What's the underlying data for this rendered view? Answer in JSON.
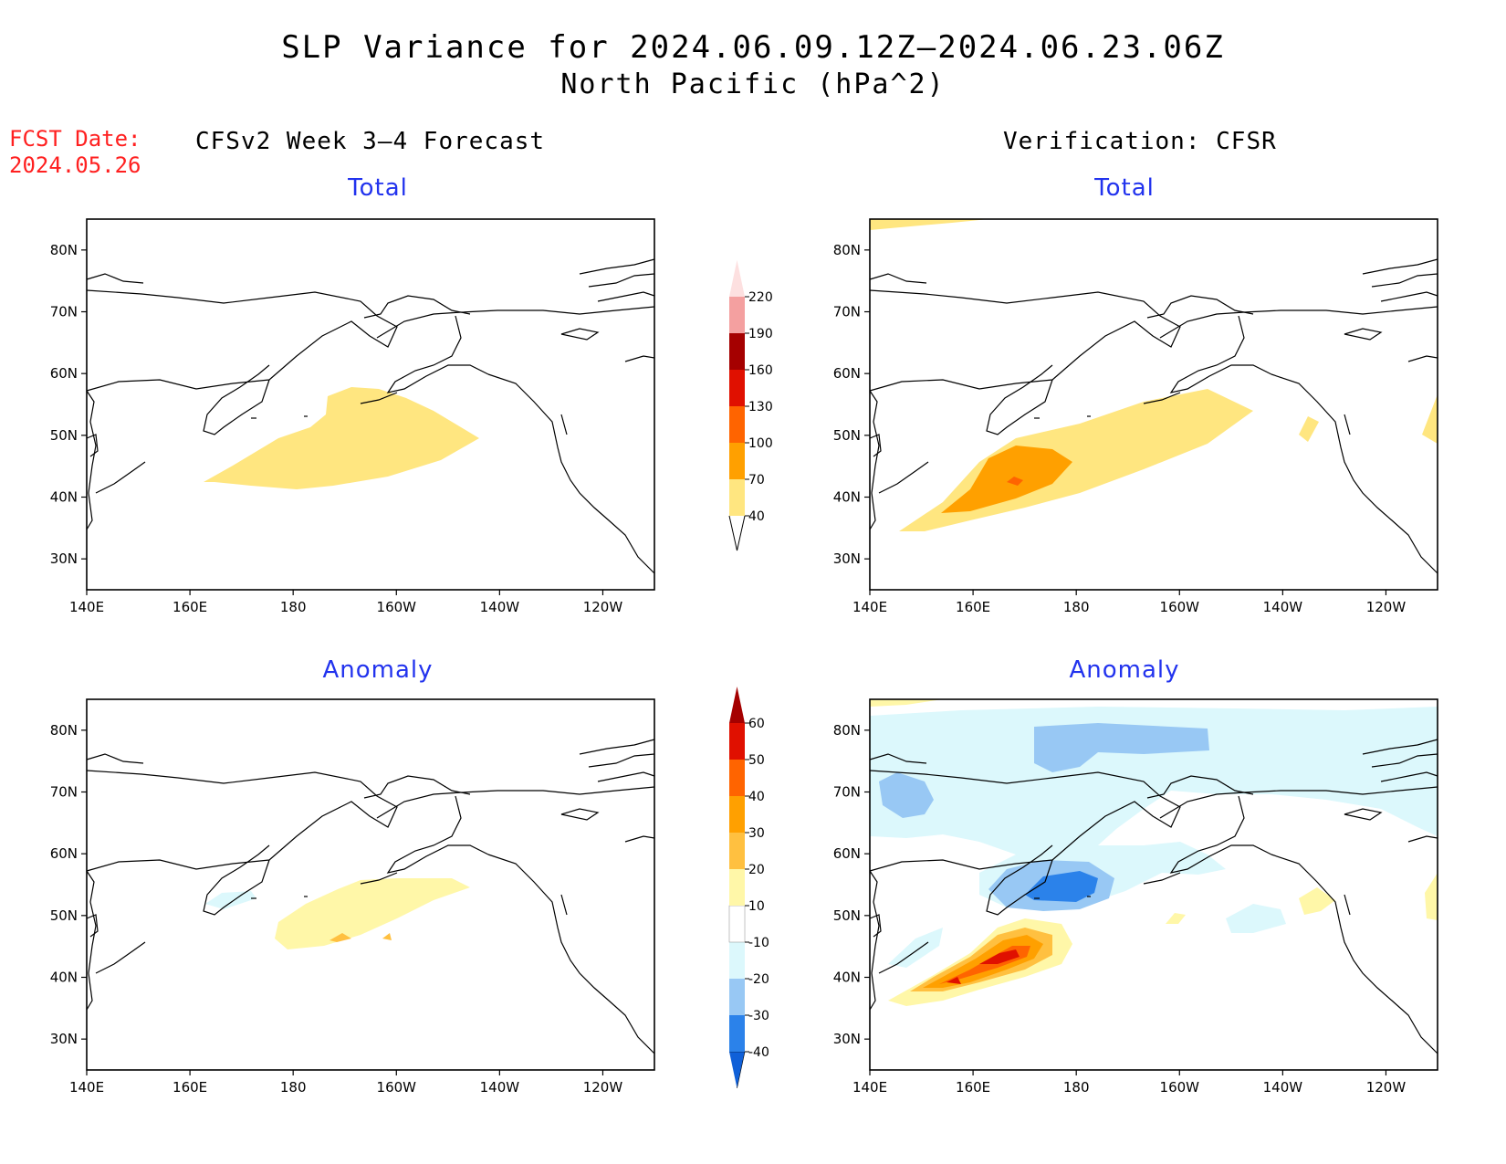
{
  "title": "SLP Variance for 2024.06.09.12Z–2024.06.23.06Z",
  "subtitle": "North Pacific (hPa^2)",
  "fcst_date": "FCST Date:\n2024.05.26",
  "left_header": "CFSv2 Week 3–4 Forecast",
  "right_header": "Verification: CFSR",
  "panels": {
    "fc_total": "Total",
    "ver_total": "Total",
    "fc_anom": "Anomaly",
    "ver_anom": "Anomaly"
  },
  "axes": {
    "lon_labels": [
      "140E",
      "160E",
      "180",
      "160W",
      "140W",
      "120W"
    ],
    "lon_values": [
      140,
      160,
      180,
      200,
      220,
      240
    ],
    "lat_labels": [
      "30N",
      "40N",
      "50N",
      "60N",
      "70N",
      "80N"
    ],
    "lat_values": [
      30,
      40,
      50,
      60,
      70,
      80
    ],
    "lon_range": [
      140,
      250
    ],
    "lat_range": [
      25,
      85
    ]
  },
  "colorbars": {
    "total": {
      "levels": [
        "40",
        "70",
        "100",
        "130",
        "160",
        "190",
        "220"
      ],
      "colors": [
        "#ffe680",
        "#ffa000",
        "#ff6400",
        "#e01000",
        "#a50000",
        "#f4a0a0",
        "#fde0e0"
      ]
    },
    "anomaly": {
      "levels": [
        "-40",
        "-30",
        "-20",
        "-10",
        "10",
        "20",
        "30",
        "40",
        "50",
        "60"
      ],
      "colors": [
        "#1060d8",
        "#2b82ea",
        "#98c8f4",
        "#dcf8fc",
        "#ffffff",
        "#fff7a8",
        "#ffc040",
        "#ffa000",
        "#ff6400",
        "#e01000",
        "#a50000"
      ]
    }
  }
}
